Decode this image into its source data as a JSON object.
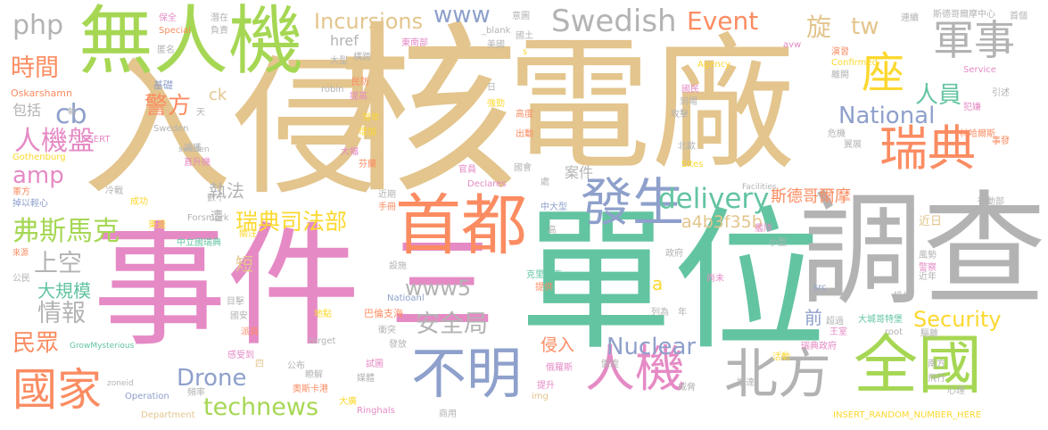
{
  "palette": {
    "gold": "#e3c58d",
    "pink": "#e58ac5",
    "teal": "#63c4a1",
    "gray": "#b3b3b3",
    "blue": "#8ea0cb",
    "orange": "#fb8c62",
    "green": "#a6d754",
    "yellow": "#fcd82f"
  },
  "words": [
    "電廠",
    "核",
    "入侵",
    "事件",
    "單位",
    "調查",
    "三",
    "無人機",
    "首都",
    "發生",
    "全國",
    "瑞典",
    "座",
    "軍事",
    "人機",
    "不明",
    "北方",
    "國家",
    "人機盤",
    "弗斯馬克",
    "瑞典司法部",
    "technews",
    "delivery",
    "Swedish",
    "National",
    "Security",
    "Nuclear",
    "警方",
    "時間",
    "amp",
    "cb",
    "php",
    "www",
    "www5",
    "Incursions",
    "Event",
    "Drone",
    "安全局",
    "上空",
    "情報",
    "民眾",
    "人員",
    "旋",
    "tw",
    "斯德哥爾摩",
    "a4b3f35b",
    "a",
    "大規模",
    "短",
    "前",
    "侵入",
    "執法",
    "遭",
    "案件",
    "href",
    "包括",
    "近日",
    "ck",
    "基礎",
    "匿名",
    "軸",
    "Oskarshamn",
    "Gothenburg",
    "冷戰",
    "成功",
    "掉以輕心",
    "軍方",
    "數十",
    "東邊",
    "中立國瑞典",
    "關注",
    "Forsmark",
    "目擊",
    "國安",
    "派員",
    "感受到",
    "四",
    "Operation",
    "頻率",
    "Department",
    "zoneid",
    "GrowMysterious",
    "target",
    "公布",
    "地點",
    "瞭解",
    "大廣",
    "Ringhals",
    "奧斯卡港",
    "媒體",
    "試圖",
    "巴倫支海",
    "衝突",
    "發放",
    "Natioanl",
    "克里米亞",
    "提供",
    "俄羅斯",
    "盤旋",
    "提升",
    "img",
    "商用",
    "尚未",
    "列為",
    "年",
    "超過",
    "王室",
    "瑞典政府",
    "活動",
    "威脅",
    "抵達",
    "南方",
    "飛行",
    "心理",
    "近年",
    "操作",
    "src",
    "root",
    "驅離",
    "大城哥特堡",
    "風勢",
    "警察",
    "行動部",
    "事發",
    "林哈爾斯",
    "引述",
    "犯嫌",
    "Service",
    "離開",
    "Confirmed",
    "演習",
    "avw",
    "Agency",
    "連續",
    "斯德哥爾摩中心",
    "首個",
    "潛在",
    "負責",
    "保全",
    "Special",
    "意圖",
    "國土",
    "東南部",
    "_blank",
    "美國",
    "大型",
    "橫跨",
    "提高",
    "民防",
    "日",
    "強勁",
    "常年",
    "高度",
    "攻擊",
    "到場",
    "國民",
    "增加",
    "出動",
    "大幅",
    "芬蘭",
    "官員",
    "國會",
    "危機",
    "翼展",
    "北歐",
    "Sites",
    "處",
    "中大型",
    "政府",
    "艦隊",
    "小型",
    "設施",
    "近期",
    "手冊",
    "Declares",
    "Facilities",
    "robin",
    "天",
    "INSERT",
    "Sweden",
    "捕獲",
    "直升機",
    "INSERT_RANDOM_NUMBER_HERE",
    "s",
    "高",
    "公民",
    "來源",
    "sweden"
  ]
}
